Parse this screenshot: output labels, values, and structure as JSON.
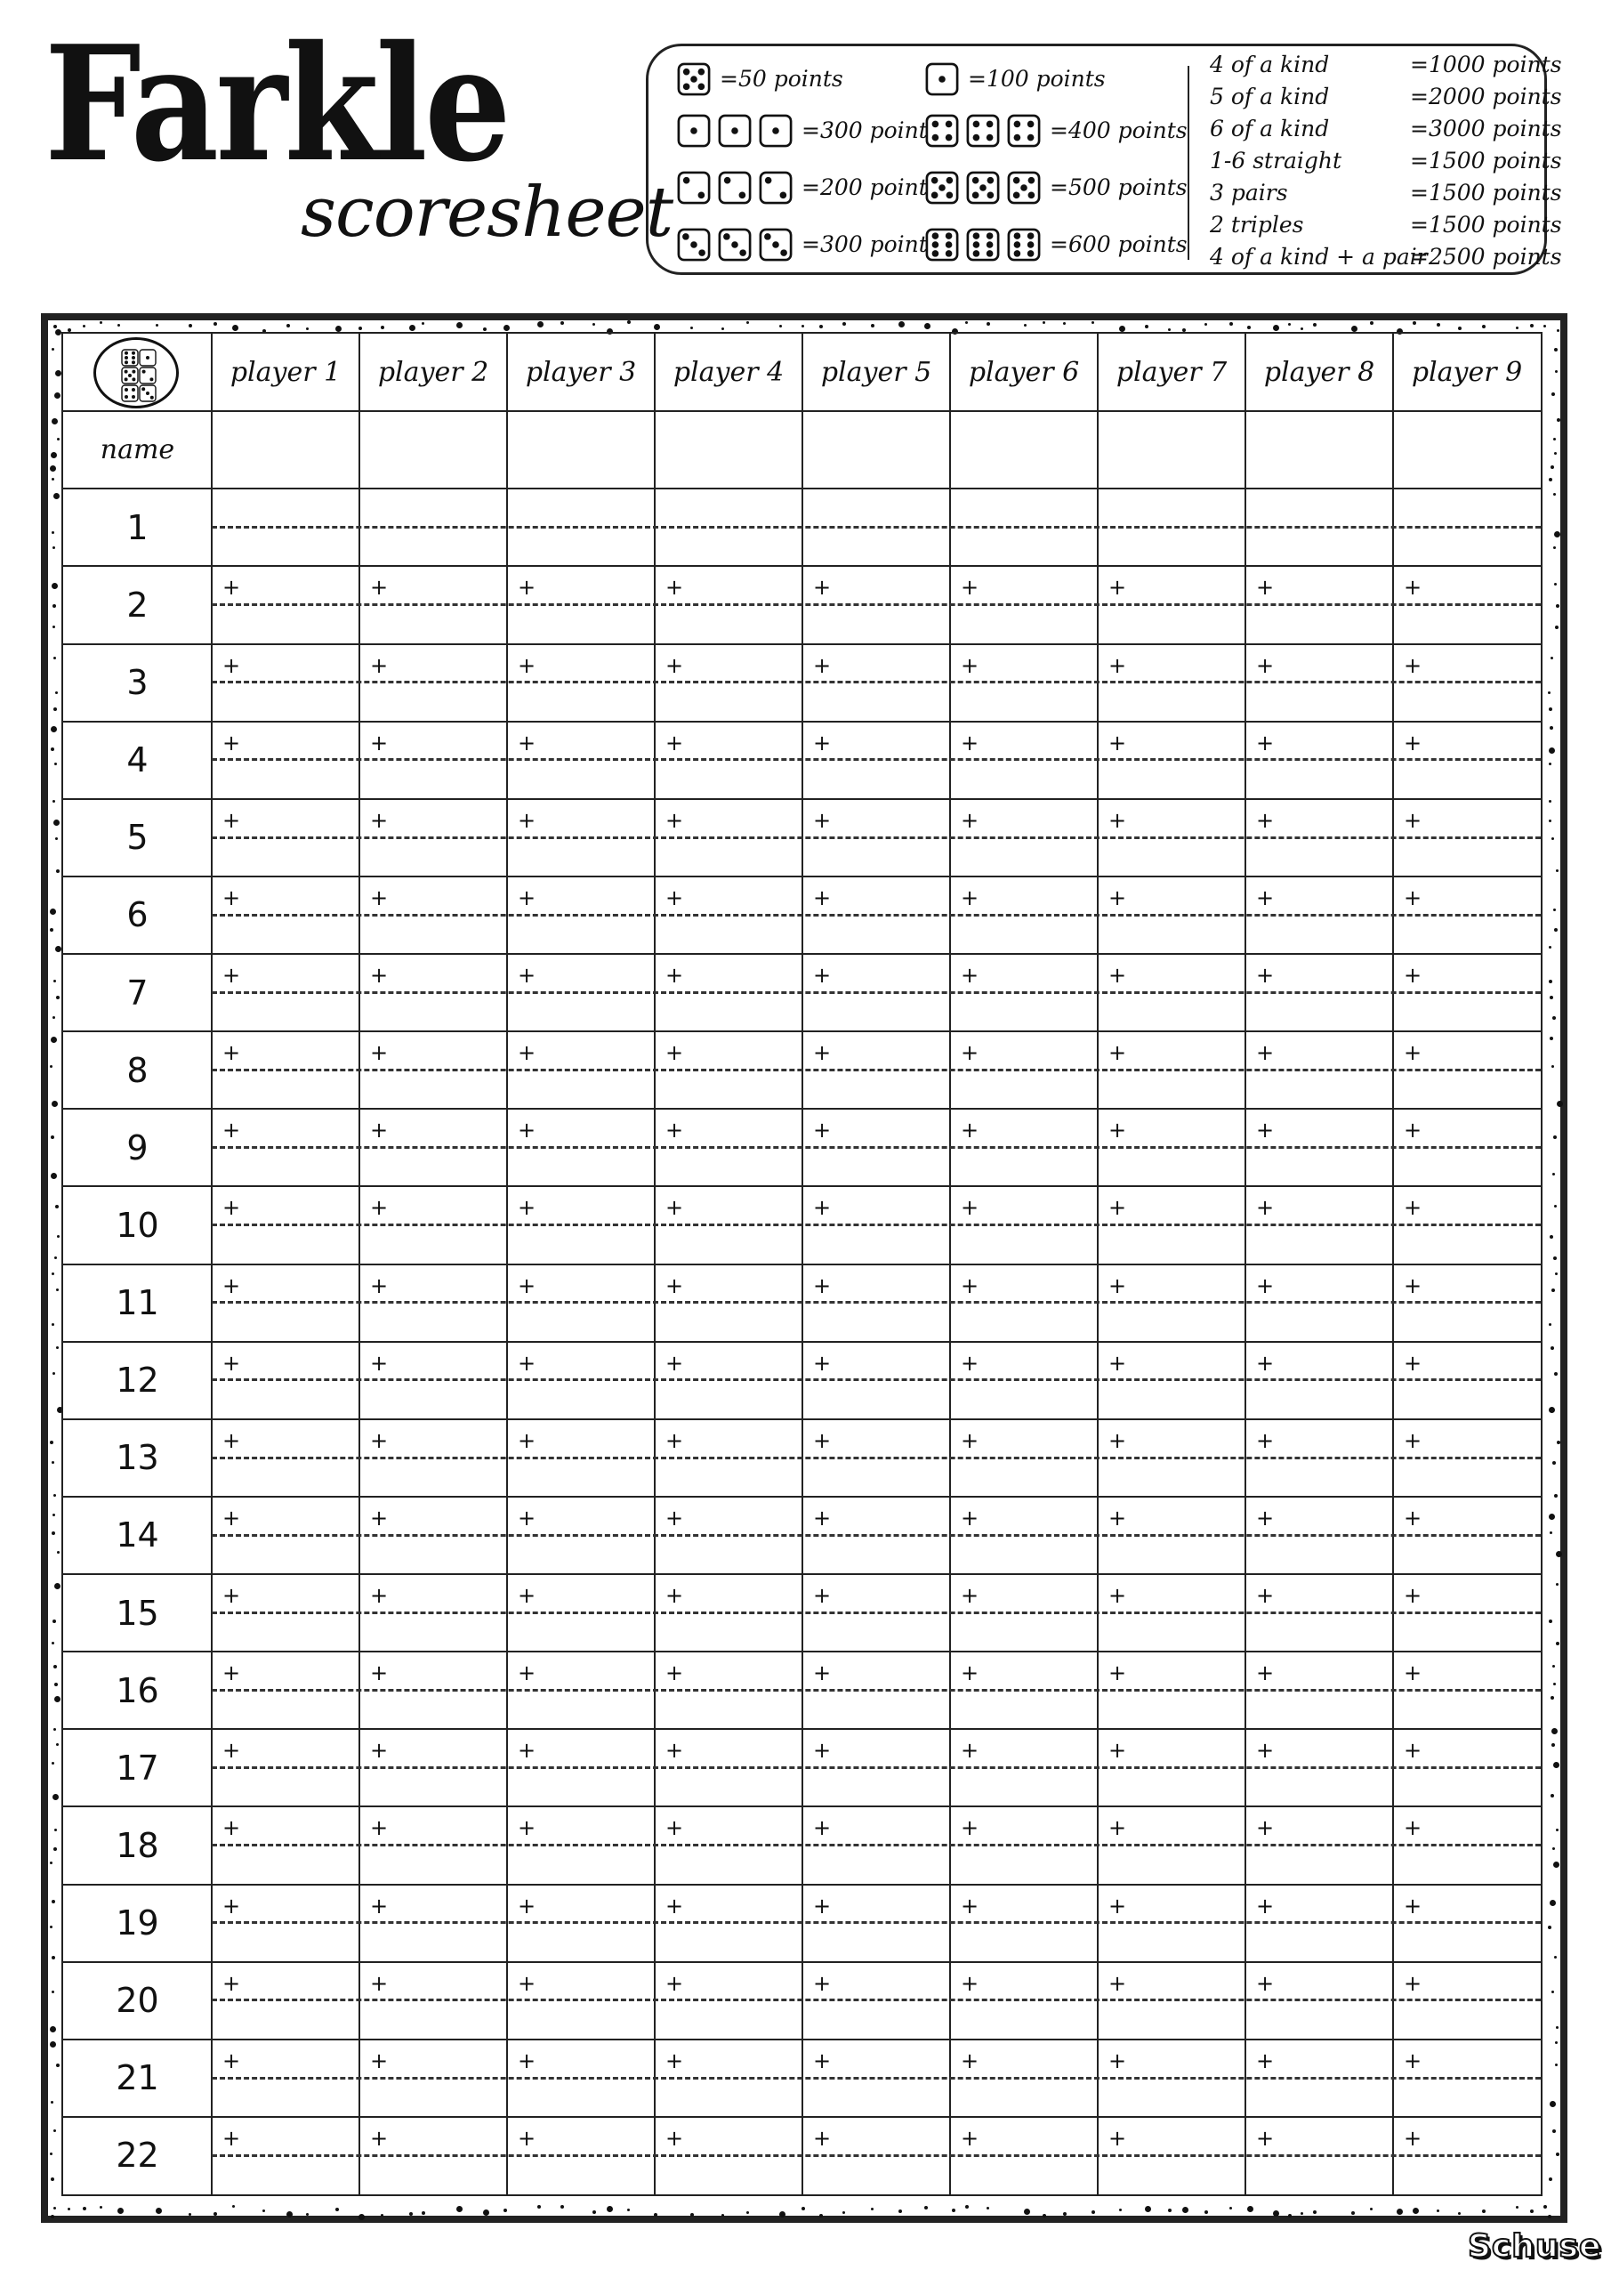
{
  "header": {
    "title": "Farkle",
    "subtitle": "scoresheet"
  },
  "rules": {
    "dice_scores": [
      {
        "faces": [
          5
        ],
        "text": "=50 points"
      },
      {
        "faces": [
          1
        ],
        "text": "=100 points"
      },
      {
        "faces": [
          1,
          1,
          1
        ],
        "text": "=300 points"
      },
      {
        "faces": [
          4,
          4,
          4
        ],
        "text": "=400 points"
      },
      {
        "faces": [
          2,
          2,
          2
        ],
        "text": "=200 points"
      },
      {
        "faces": [
          5,
          5,
          5
        ],
        "text": "=500 points"
      },
      {
        "faces": [
          3,
          3,
          3
        ],
        "text": "=300 points"
      },
      {
        "faces": [
          6,
          6,
          6
        ],
        "text": "=600 points"
      }
    ],
    "combos": [
      {
        "name": "4 of a kind",
        "value": "=1000 points"
      },
      {
        "name": "5 of a kind",
        "value": "=2000 points"
      },
      {
        "name": "6 of a kind",
        "value": "=3000 points"
      },
      {
        "name": "1-6 straight",
        "value": "=1500 points"
      },
      {
        "name": "3 pairs",
        "value": "=1500 points"
      },
      {
        "name": "2 triples",
        "value": "=1500 points"
      },
      {
        "name": "4 of a kind + a pair",
        "value": "=2500 points"
      }
    ]
  },
  "table": {
    "corner_icon": "dice-icon",
    "corner_faces": [
      6,
      1,
      5,
      2,
      4,
      3
    ],
    "players": [
      "player 1",
      "player 2",
      "player 3",
      "player 4",
      "player 5",
      "player 6",
      "player 7",
      "player 8",
      "player 9"
    ],
    "name_label": "name",
    "rounds": [
      "1",
      "2",
      "3",
      "4",
      "5",
      "6",
      "7",
      "8",
      "9",
      "10",
      "11",
      "12",
      "13",
      "14",
      "15",
      "16",
      "17",
      "18",
      "19",
      "20",
      "21",
      "22"
    ],
    "plus_sign": "+"
  },
  "brand": "Schuse"
}
